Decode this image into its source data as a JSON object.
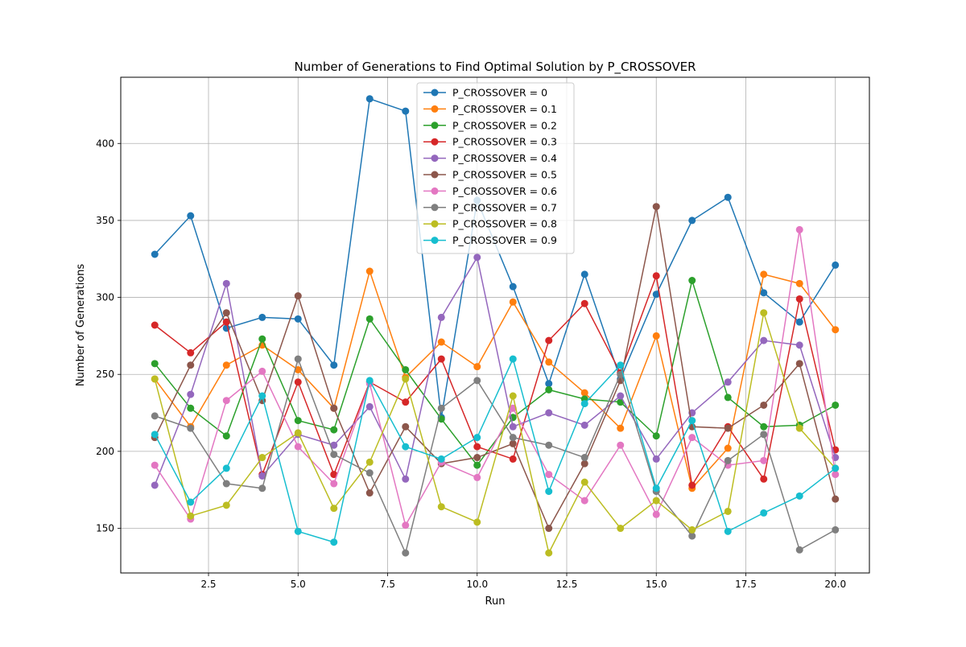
{
  "chart_data": {
    "type": "line",
    "title": "Number of Generations to Find Optimal Solution by P_CROSSOVER",
    "xlabel": "Run",
    "ylabel": "Number of Generations",
    "xlim": [
      0.05,
      20.95
    ],
    "ylim": [
      121,
      443
    ],
    "x_ticks": [
      2.5,
      5.0,
      7.5,
      10.0,
      12.5,
      15.0,
      17.5,
      20.0
    ],
    "x_tick_labels": [
      "2.5",
      "5.0",
      "7.5",
      "10.0",
      "12.5",
      "15.0",
      "17.5",
      "20.0"
    ],
    "y_ticks": [
      150,
      200,
      250,
      300,
      350,
      400
    ],
    "y_tick_labels": [
      "150",
      "200",
      "250",
      "300",
      "350",
      "400"
    ],
    "grid": true,
    "legend_position": "upper-center",
    "x": [
      1,
      2,
      3,
      4,
      5,
      6,
      7,
      8,
      9,
      10,
      11,
      12,
      13,
      14,
      15,
      16,
      17,
      18,
      19,
      20
    ],
    "series": [
      {
        "name": "P_CROSSOVER = 0",
        "color": "#1f77b4",
        "values": [
          328,
          353,
          280,
          287,
          286,
          256,
          429,
          421,
          222,
          363,
          307,
          244,
          315,
          247,
          302,
          350,
          365,
          303,
          284,
          321
        ]
      },
      {
        "name": "P_CROSSOVER = 0.1",
        "color": "#ff7f0e",
        "values": [
          247,
          216,
          256,
          269,
          253,
          228,
          317,
          248,
          271,
          255,
          297,
          258,
          238,
          215,
          275,
          176,
          202,
          315,
          309,
          279
        ]
      },
      {
        "name": "P_CROSSOVER = 0.2",
        "color": "#2ca02c",
        "values": [
          257,
          228,
          210,
          273,
          220,
          214,
          286,
          253,
          221,
          191,
          222,
          240,
          234,
          232,
          210,
          311,
          235,
          216,
          217,
          230
        ]
      },
      {
        "name": "P_CROSSOVER = 0.3",
        "color": "#d62728",
        "values": [
          282,
          264,
          284,
          185,
          245,
          185,
          245,
          232,
          260,
          203,
          195,
          272,
          296,
          251,
          314,
          178,
          216,
          182,
          299,
          201
        ]
      },
      {
        "name": "P_CROSSOVER = 0.4",
        "color": "#9467bd",
        "values": [
          178,
          237,
          309,
          184,
          211,
          204,
          229,
          182,
          287,
          326,
          216,
          225,
          217,
          236,
          195,
          225,
          245,
          272,
          269,
          196
        ]
      },
      {
        "name": "P_CROSSOVER = 0.5",
        "color": "#8c564b",
        "values": [
          209,
          256,
          290,
          233,
          301,
          228,
          173,
          216,
          192,
          196,
          205,
          150,
          192,
          246,
          359,
          216,
          215,
          230,
          257,
          169
        ]
      },
      {
        "name": "P_CROSSOVER = 0.6",
        "color": "#e377c2",
        "values": [
          191,
          156,
          233,
          252,
          203,
          179,
          244,
          152,
          193,
          183,
          228,
          185,
          168,
          204,
          159,
          209,
          191,
          194,
          344,
          185
        ]
      },
      {
        "name": "P_CROSSOVER = 0.7",
        "color": "#7f7f7f",
        "values": [
          223,
          215,
          179,
          176,
          260,
          198,
          186,
          134,
          228,
          246,
          209,
          204,
          196,
          250,
          174,
          145,
          194,
          211,
          136,
          149
        ]
      },
      {
        "name": "P_CROSSOVER = 0.8",
        "color": "#bcbd22",
        "values": [
          247,
          158,
          165,
          196,
          212,
          163,
          193,
          247,
          164,
          154,
          236,
          134,
          180,
          150,
          168,
          149,
          161,
          290,
          215,
          189
        ]
      },
      {
        "name": "P_CROSSOVER = 0.9",
        "color": "#17becf",
        "values": [
          211,
          167,
          189,
          236,
          148,
          141,
          246,
          203,
          195,
          209,
          260,
          174,
          231,
          256,
          176,
          220,
          148,
          160,
          171,
          189
        ]
      }
    ]
  }
}
